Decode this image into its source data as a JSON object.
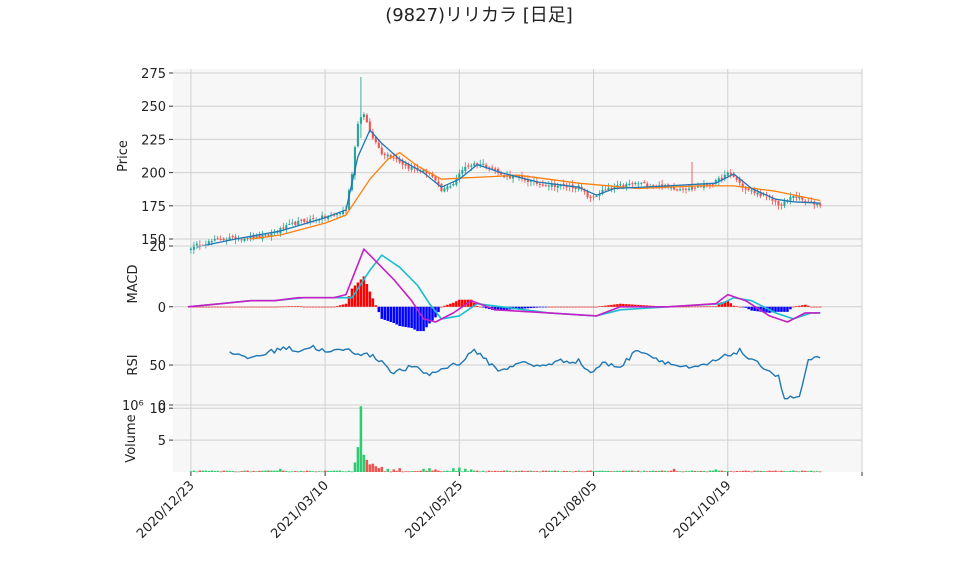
{
  "chart_title": "(9827)リリカラ [日足]",
  "colors": {
    "up": "#26a69a",
    "down": "#ef5350",
    "ma_short": "#1f77b4",
    "ma_long": "#ff7f0e",
    "macd": "#c51fc5",
    "signal": "#17becf",
    "hist_pos": "#ff0000",
    "hist_neg": "#0000ff",
    "rsi": "#1f77b4",
    "vol_up": "#2ecc71",
    "vol_down": "#ef5350",
    "panel_bg": "#f7f7f7",
    "grid": "#d0d0d0"
  },
  "chart_data": [
    {
      "type": "candlestick",
      "panel": "price",
      "ylabel": "Price",
      "ylim": [
        147,
        278
      ],
      "yticks": [
        "150",
        "175",
        "200",
        "225",
        "250",
        "275"
      ],
      "x_tick_labels": [
        "2020/12/23",
        "2021/03/10",
        "2021/05/25",
        "2021/08/05",
        "2021/10/19"
      ],
      "x_range_trading_days": [
        -6,
        225
      ],
      "x_tick_positions": [
        0,
        45,
        90,
        135,
        180,
        225
      ],
      "close_keypoints": [
        [
          0,
          144
        ],
        [
          10,
          150
        ],
        [
          25,
          152
        ],
        [
          35,
          162
        ],
        [
          48,
          168
        ],
        [
          52,
          172
        ],
        [
          54,
          200
        ],
        [
          56,
          238
        ],
        [
          58,
          245
        ],
        [
          60,
          230
        ],
        [
          64,
          215
        ],
        [
          68,
          212
        ],
        [
          72,
          205
        ],
        [
          76,
          202
        ],
        [
          80,
          200
        ],
        [
          84,
          186
        ],
        [
          88,
          192
        ],
        [
          92,
          205
        ],
        [
          96,
          207
        ],
        [
          100,
          205
        ],
        [
          104,
          198
        ],
        [
          110,
          196
        ],
        [
          116,
          192
        ],
        [
          124,
          190
        ],
        [
          130,
          189
        ],
        [
          134,
          180
        ],
        [
          138,
          186
        ],
        [
          144,
          190
        ],
        [
          150,
          192
        ],
        [
          156,
          190
        ],
        [
          164,
          188
        ],
        [
          172,
          190
        ],
        [
          176,
          193
        ],
        [
          180,
          199
        ],
        [
          182,
          197
        ],
        [
          186,
          187
        ],
        [
          192,
          183
        ],
        [
          198,
          175
        ],
        [
          202,
          183
        ],
        [
          206,
          178
        ],
        [
          211,
          176
        ]
      ],
      "ma_short_keypoints": [
        [
          2,
          144
        ],
        [
          15,
          150
        ],
        [
          30,
          156
        ],
        [
          45,
          166
        ],
        [
          52,
          172
        ],
        [
          56,
          212
        ],
        [
          60,
          232
        ],
        [
          64,
          222
        ],
        [
          70,
          210
        ],
        [
          78,
          200
        ],
        [
          84,
          189
        ],
        [
          90,
          195
        ],
        [
          96,
          206
        ],
        [
          104,
          200
        ],
        [
          116,
          193
        ],
        [
          130,
          189
        ],
        [
          136,
          183
        ],
        [
          142,
          188
        ],
        [
          160,
          190
        ],
        [
          176,
          192
        ],
        [
          182,
          199
        ],
        [
          188,
          188
        ],
        [
          196,
          180
        ],
        [
          202,
          178
        ],
        [
          211,
          177
        ]
      ],
      "ma_long_keypoints": [
        [
          20,
          150
        ],
        [
          30,
          153
        ],
        [
          45,
          162
        ],
        [
          52,
          168
        ],
        [
          60,
          195
        ],
        [
          66,
          210
        ],
        [
          70,
          215
        ],
        [
          76,
          205
        ],
        [
          84,
          195
        ],
        [
          92,
          196
        ],
        [
          110,
          198
        ],
        [
          130,
          192
        ],
        [
          150,
          188
        ],
        [
          170,
          190
        ],
        [
          182,
          190
        ],
        [
          196,
          186
        ],
        [
          211,
          179
        ]
      ]
    },
    {
      "type": "line",
      "panel": "macd",
      "ylabel": "MACD",
      "ylim": [
        -6,
        21
      ],
      "yticks": [
        "0",
        "20"
      ],
      "macd_keypoints": [
        [
          -1,
          0
        ],
        [
          10,
          1
        ],
        [
          20,
          2
        ],
        [
          28,
          2
        ],
        [
          36,
          3
        ],
        [
          48,
          3
        ],
        [
          52,
          4
        ],
        [
          58,
          19
        ],
        [
          62,
          15
        ],
        [
          68,
          9
        ],
        [
          74,
          2
        ],
        [
          78,
          -4
        ],
        [
          82,
          -5
        ],
        [
          88,
          -2
        ],
        [
          94,
          2
        ],
        [
          102,
          -1
        ],
        [
          120,
          -2
        ],
        [
          136,
          -3
        ],
        [
          144,
          0
        ],
        [
          160,
          0
        ],
        [
          176,
          1
        ],
        [
          180,
          4
        ],
        [
          186,
          2
        ],
        [
          194,
          -3
        ],
        [
          200,
          -5
        ],
        [
          206,
          -2
        ],
        [
          211,
          -2
        ]
      ],
      "signal_keypoints": [
        [
          -1,
          0
        ],
        [
          10,
          1
        ],
        [
          20,
          2
        ],
        [
          28,
          2
        ],
        [
          38,
          3
        ],
        [
          48,
          3
        ],
        [
          54,
          3
        ],
        [
          60,
          12
        ],
        [
          64,
          17
        ],
        [
          70,
          13
        ],
        [
          76,
          7
        ],
        [
          80,
          1
        ],
        [
          84,
          -4
        ],
        [
          90,
          -3
        ],
        [
          96,
          1
        ],
        [
          104,
          0
        ],
        [
          120,
          -2
        ],
        [
          136,
          -3
        ],
        [
          144,
          -1
        ],
        [
          160,
          0
        ],
        [
          178,
          1
        ],
        [
          182,
          3
        ],
        [
          188,
          2
        ],
        [
          196,
          -2
        ],
        [
          202,
          -4
        ],
        [
          208,
          -2
        ],
        [
          211,
          -2
        ]
      ]
    },
    {
      "type": "line",
      "panel": "rsi",
      "ylabel": "RSI",
      "ylim": [
        0,
        100
      ],
      "yticks": [
        "0",
        "50"
      ],
      "rsi_keypoints": [
        [
          13,
          68
        ],
        [
          18,
          58
        ],
        [
          23,
          62
        ],
        [
          28,
          68
        ],
        [
          31,
          72
        ],
        [
          36,
          68
        ],
        [
          41,
          73
        ],
        [
          46,
          65
        ],
        [
          51,
          70
        ],
        [
          56,
          65
        ],
        [
          60,
          62
        ],
        [
          64,
          55
        ],
        [
          68,
          40
        ],
        [
          74,
          48
        ],
        [
          80,
          38
        ],
        [
          86,
          48
        ],
        [
          91,
          54
        ],
        [
          95,
          70
        ],
        [
          98,
          58
        ],
        [
          104,
          42
        ],
        [
          110,
          54
        ],
        [
          116,
          48
        ],
        [
          124,
          55
        ],
        [
          130,
          55
        ],
        [
          134,
          40
        ],
        [
          138,
          52
        ],
        [
          144,
          48
        ],
        [
          150,
          70
        ],
        [
          156,
          58
        ],
        [
          162,
          50
        ],
        [
          168,
          45
        ],
        [
          174,
          52
        ],
        [
          180,
          62
        ],
        [
          184,
          68
        ],
        [
          188,
          55
        ],
        [
          192,
          48
        ],
        [
          197,
          35
        ],
        [
          199,
          8
        ],
        [
          204,
          10
        ],
        [
          207,
          54
        ],
        [
          211,
          60
        ]
      ]
    },
    {
      "type": "bar",
      "panel": "volume",
      "ylabel": "Volume",
      "scale_label": "10⁶",
      "ylim": [
        0,
        10.5
      ],
      "yticks": [
        "5",
        "10"
      ],
      "volume_events": [
        [
          30,
          0.5
        ],
        [
          55,
          1.5
        ],
        [
          56,
          3.9
        ],
        [
          57,
          10.3
        ],
        [
          58,
          2.7
        ],
        [
          59,
          1.9
        ],
        [
          60,
          1.2
        ],
        [
          61,
          1.3
        ],
        [
          62,
          0.9
        ],
        [
          63,
          0.6
        ],
        [
          64,
          0.8
        ],
        [
          66,
          0.5
        ],
        [
          68,
          0.4
        ],
        [
          70,
          0.6
        ],
        [
          78,
          0.5
        ],
        [
          80,
          0.6
        ],
        [
          82,
          0.4
        ],
        [
          88,
          0.6
        ],
        [
          90,
          0.7
        ],
        [
          92,
          0.5
        ],
        [
          94,
          0.4
        ],
        [
          162,
          0.5
        ],
        [
          176,
          0.4
        ]
      ]
    }
  ]
}
